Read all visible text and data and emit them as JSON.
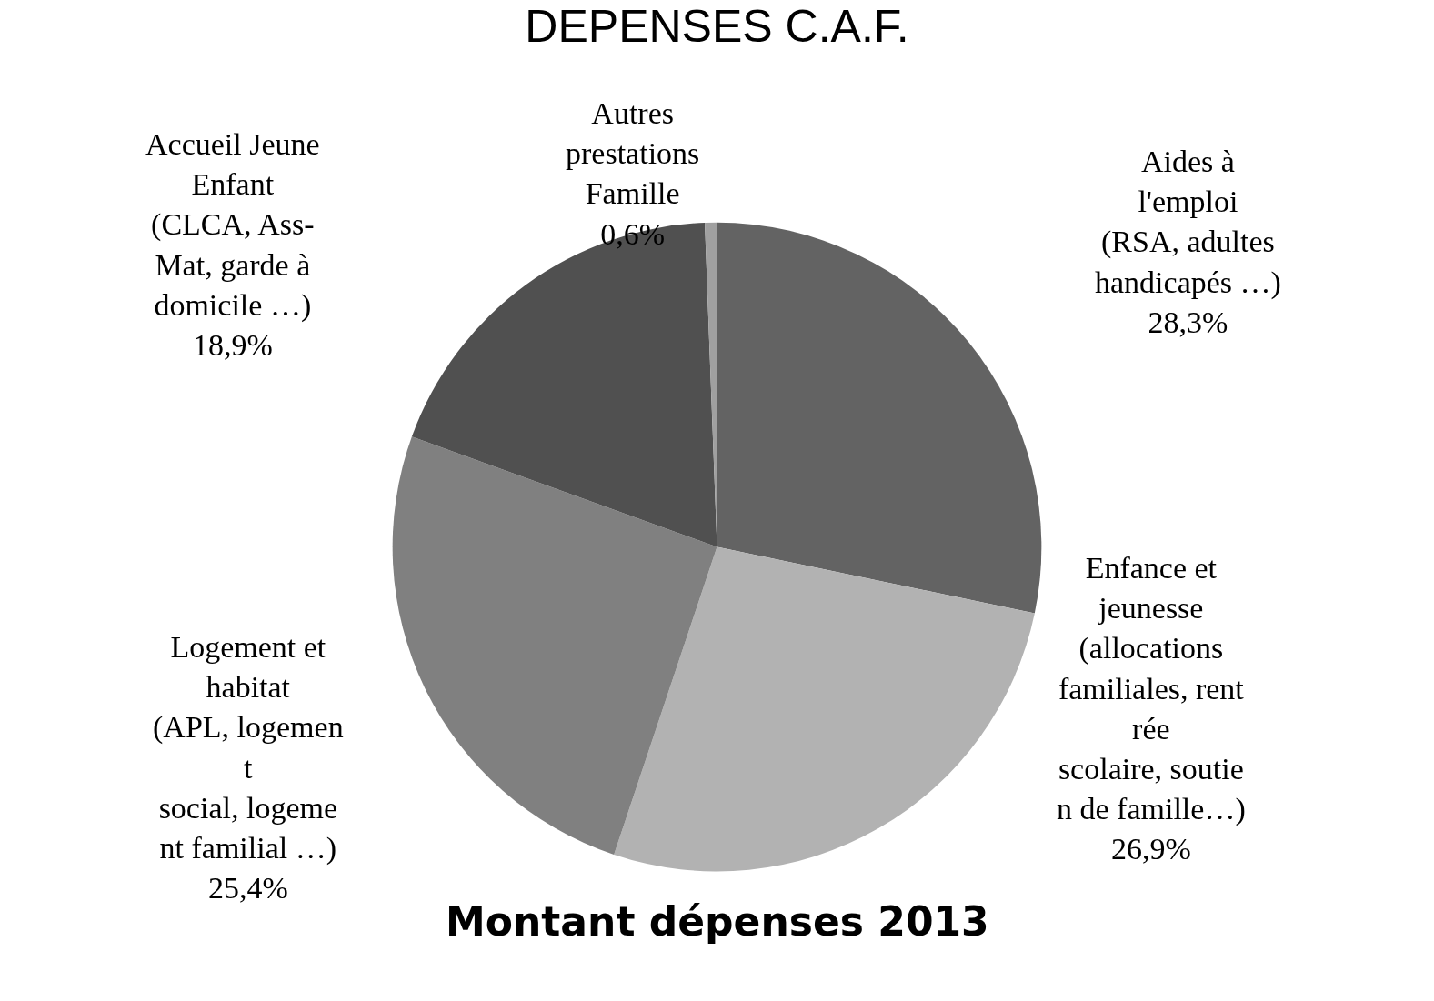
{
  "chart_data": {
    "type": "pie",
    "title": "DEPENSES C.A.F.",
    "subtitle": "Montant dépenses 2013",
    "categories": [
      "Aides à\nl'emploi\n(RSA, adultes\nhandicapés …)",
      "Enfance et\njeunesse\n(allocations\nfamiliales, rent\nrée\nscolaire, soutie\nn de famille…)",
      "Logement et\nhabitat\n(APL, logemen\nt\nsocial, logeme\nnt familial …)",
      "Accueil Jeune\nEnfant\n(CLCA, Ass-\nMat, garde à\ndomicile …)",
      "Autres\nprestations\nFamille"
    ],
    "values": [
      28.3,
      26.9,
      25.4,
      18.9,
      0.6
    ],
    "value_labels": [
      "28,3%",
      "26,9%",
      "25,4%",
      "18,9%",
      "0,6%"
    ],
    "colors": [
      "#636363",
      "#b2b2b2",
      "#808080",
      "#505050",
      "#a0a0a0"
    ],
    "legend": false
  }
}
